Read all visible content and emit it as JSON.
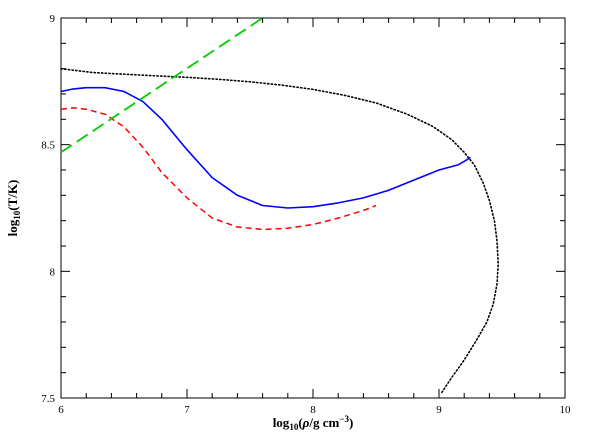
{
  "chart_data": {
    "type": "line",
    "xlabel": "log10(ρ/g cm⁻³)",
    "ylabel": "log10(T/K)",
    "xlim": [
      6,
      10
    ],
    "ylim": [
      7.5,
      9
    ],
    "x_ticks": [
      "6",
      "7",
      "8",
      "9",
      "10"
    ],
    "y_ticks": [
      "7.5",
      "8",
      "8.5",
      "9"
    ],
    "grid": false,
    "legend": "none",
    "series": [
      {
        "color": "#000000",
        "style": "dotted",
        "x": [
          6.0,
          6.25,
          6.5,
          6.75,
          7.0,
          7.25,
          7.5,
          7.75,
          8.0,
          8.25,
          8.5,
          8.75,
          8.95,
          9.1,
          9.2,
          9.28,
          9.35,
          9.4,
          9.44,
          9.46,
          9.47,
          9.46,
          9.43,
          9.38,
          9.3,
          9.2,
          9.1,
          9.02
        ],
        "y": [
          8.8,
          8.785,
          8.778,
          8.772,
          8.766,
          8.758,
          8.748,
          8.735,
          8.718,
          8.695,
          8.665,
          8.62,
          8.572,
          8.52,
          8.47,
          8.42,
          8.35,
          8.28,
          8.2,
          8.12,
          8.03,
          7.95,
          7.87,
          7.8,
          7.73,
          7.65,
          7.58,
          7.52
        ]
      },
      {
        "color": "#0000ff",
        "style": "solid",
        "x": [
          6.0,
          6.1,
          6.2,
          6.35,
          6.5,
          6.65,
          6.8,
          7.0,
          7.2,
          7.4,
          7.6,
          7.8,
          8.0,
          8.2,
          8.4,
          8.6,
          8.8,
          9.0,
          9.15,
          9.22,
          9.25
        ],
        "y": [
          8.71,
          8.72,
          8.725,
          8.725,
          8.71,
          8.67,
          8.6,
          8.48,
          8.37,
          8.3,
          8.26,
          8.25,
          8.255,
          8.27,
          8.29,
          8.32,
          8.36,
          8.4,
          8.42,
          8.44,
          8.45
        ]
      },
      {
        "color": "#ff0000",
        "style": "dashed",
        "x": [
          6.0,
          6.1,
          6.2,
          6.35,
          6.5,
          6.65,
          6.8,
          7.0,
          7.2,
          7.4,
          7.6,
          7.8,
          8.0,
          8.2,
          8.4,
          8.5
        ],
        "y": [
          8.64,
          8.645,
          8.64,
          8.62,
          8.57,
          8.49,
          8.39,
          8.29,
          8.21,
          8.175,
          8.165,
          8.17,
          8.185,
          8.21,
          8.24,
          8.26
        ]
      },
      {
        "color": "#00cc00",
        "style": "longdash",
        "x": [
          6.0,
          7.6
        ],
        "y": [
          8.47,
          9.0
        ]
      }
    ]
  }
}
